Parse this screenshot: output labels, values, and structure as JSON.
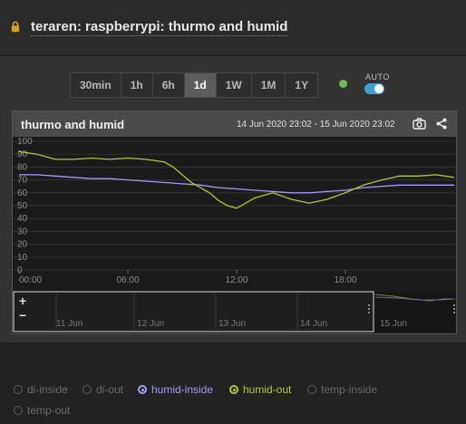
{
  "header": {
    "title": "teraren: raspberrypi: thurmo and humid"
  },
  "toolbar": {
    "ranges": [
      "30min",
      "1h",
      "6h",
      "1d",
      "1W",
      "1M",
      "1Y"
    ],
    "active_range": "1d",
    "auto_label": "AUTO",
    "auto_enabled": true,
    "status_color": "#6cc04a"
  },
  "chart_card": {
    "title": "thurmo and humid",
    "date_range": "14 Jun 2020 23:02 - 15 Jun 2020 23:02"
  },
  "navigator": {
    "zoom_in": "+",
    "zoom_out": "−",
    "labels": [
      "11 Jun",
      "12 Jun",
      "13 Jun",
      "14 Jun",
      "15 Jun"
    ]
  },
  "legend": {
    "items": [
      {
        "label": "di-inside",
        "on": false
      },
      {
        "label": "di-out",
        "on": false
      },
      {
        "label": "humid-inside",
        "on": true,
        "color": "#a59df0"
      },
      {
        "label": "humid-out",
        "on": true,
        "color": "#b2c636"
      },
      {
        "label": "temp-inside",
        "on": false
      },
      {
        "label": "temp-out",
        "on": false
      }
    ]
  },
  "chart_data": {
    "type": "line",
    "title": "thurmo and humid",
    "xlabel": "",
    "ylabel": "",
    "ylim": [
      0,
      100
    ],
    "y_ticks": [
      0,
      10,
      20,
      30,
      40,
      50,
      60,
      70,
      80,
      90,
      100
    ],
    "x_ticks": [
      "00:00",
      "06:00",
      "12:00",
      "18:00"
    ],
    "x_range_hours": [
      0,
      24
    ],
    "grid": true,
    "series": [
      {
        "name": "humid-inside",
        "color": "#a59df0",
        "x": [
          0,
          1,
          2,
          3,
          4,
          5,
          6,
          7,
          8,
          9,
          10,
          11,
          12,
          13,
          14,
          15,
          16,
          17,
          18,
          19,
          20,
          21,
          22,
          23,
          24
        ],
        "y": [
          74,
          74,
          73,
          72,
          71,
          71,
          70,
          69,
          68,
          67,
          66,
          64,
          63,
          62,
          61,
          60,
          60,
          61,
          62,
          64,
          65,
          66,
          66,
          66,
          66
        ]
      },
      {
        "name": "humid-out",
        "color": "#b2c636",
        "x": [
          0,
          1,
          2,
          3,
          4,
          5,
          6,
          7,
          8,
          8.5,
          9,
          9.5,
          10,
          10.5,
          11,
          11.5,
          12,
          12.5,
          13,
          14,
          15,
          16,
          17,
          18,
          19,
          20,
          21,
          22,
          23,
          24
        ],
        "y": [
          92,
          90,
          86,
          86,
          87,
          86,
          87,
          86,
          84,
          80,
          74,
          68,
          64,
          60,
          54,
          50,
          48,
          52,
          56,
          60,
          55,
          52,
          55,
          60,
          66,
          70,
          73,
          73,
          74,
          72
        ]
      }
    ]
  }
}
